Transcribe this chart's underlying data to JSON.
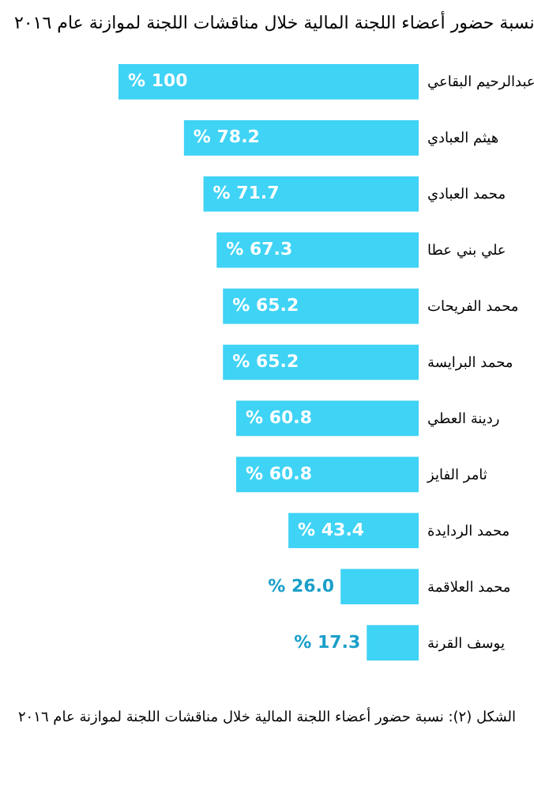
{
  "chart_data": {
    "type": "bar",
    "orientation": "horizontal",
    "title": "نسبة حضور أعضاء اللجنة المالية خلال مناقشات اللجنة لموازنة عام ٢٠١٦",
    "categories": [
      "عبدالرحيم البقاعي",
      "هيثم العبادي",
      "محمد العبادي",
      "علي بني عطا",
      "محمد الفريحات",
      "محمد البرايسة",
      "ردينة العطي",
      "ثامر الفايز",
      "محمد الردايدة",
      "محمد العلاقمة",
      "يوسف القرنة"
    ],
    "values": [
      100,
      78.2,
      71.7,
      67.3,
      65.2,
      65.2,
      60.8,
      60.8,
      43.4,
      26.0,
      17.3
    ],
    "value_labels": [
      "% 100",
      "% 78.2",
      "% 71.7",
      "% 67.3",
      "% 65.2",
      "% 65.2",
      "% 60.8",
      "% 60.8",
      "% 43.4",
      "% 26.0",
      "% 17.3"
    ],
    "color": "#3fd3f5",
    "annotations": [
      "الشكل (٢): نسبة حضور أعضاء اللجنة المالية خلال مناقشات اللجنة لموازنة عام ٢٠١٦"
    ]
  }
}
